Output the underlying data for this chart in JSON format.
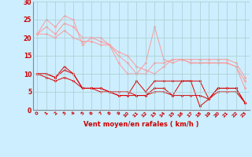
{
  "xlabel": "Vent moyen/en rafales ( km/h )",
  "background_color": "#cceeff",
  "grid_color": "#aacccc",
  "xlim": [
    -0.5,
    23.5
  ],
  "ylim": [
    0,
    30
  ],
  "xticks": [
    0,
    1,
    2,
    3,
    4,
    5,
    6,
    7,
    8,
    9,
    10,
    11,
    12,
    13,
    14,
    15,
    16,
    17,
    18,
    19,
    20,
    21,
    22,
    23
  ],
  "yticks": [
    0,
    5,
    10,
    15,
    20,
    25,
    30
  ],
  "light_lines": [
    [
      21,
      25,
      23,
      26,
      25,
      18,
      20,
      19,
      18,
      13,
      10,
      10,
      13,
      23,
      14,
      13,
      14,
      13,
      13,
      13,
      13,
      13,
      12,
      6
    ],
    [
      21,
      23,
      21,
      24,
      23,
      20,
      20,
      20,
      18,
      15,
      13,
      10,
      10,
      13,
      13,
      14,
      14,
      13,
      13,
      13,
      13,
      13,
      12,
      8
    ],
    [
      21,
      21,
      20,
      22,
      20,
      19,
      19,
      18,
      18,
      16,
      15,
      12,
      11,
      10,
      12,
      14,
      14,
      14,
      14,
      14,
      14,
      14,
      13,
      9
    ]
  ],
  "dark_lines": [
    [
      10,
      10,
      9,
      12,
      10,
      6,
      6,
      6,
      5,
      4,
      4,
      8,
      5,
      8,
      8,
      8,
      8,
      8,
      8,
      3,
      6,
      6,
      6,
      2
    ],
    [
      10,
      10,
      9,
      11,
      10,
      6,
      6,
      6,
      5,
      5,
      5,
      4,
      4,
      6,
      6,
      4,
      8,
      8,
      1,
      3,
      6,
      6,
      6,
      2
    ],
    [
      10,
      9,
      8,
      9,
      8,
      6,
      6,
      5,
      5,
      4,
      4,
      4,
      4,
      5,
      5,
      4,
      4,
      4,
      4,
      3,
      5,
      5,
      5,
      2
    ]
  ],
  "light_color": "#ff9999",
  "dark_color": "#dd0000",
  "label_color": "#cc0000"
}
